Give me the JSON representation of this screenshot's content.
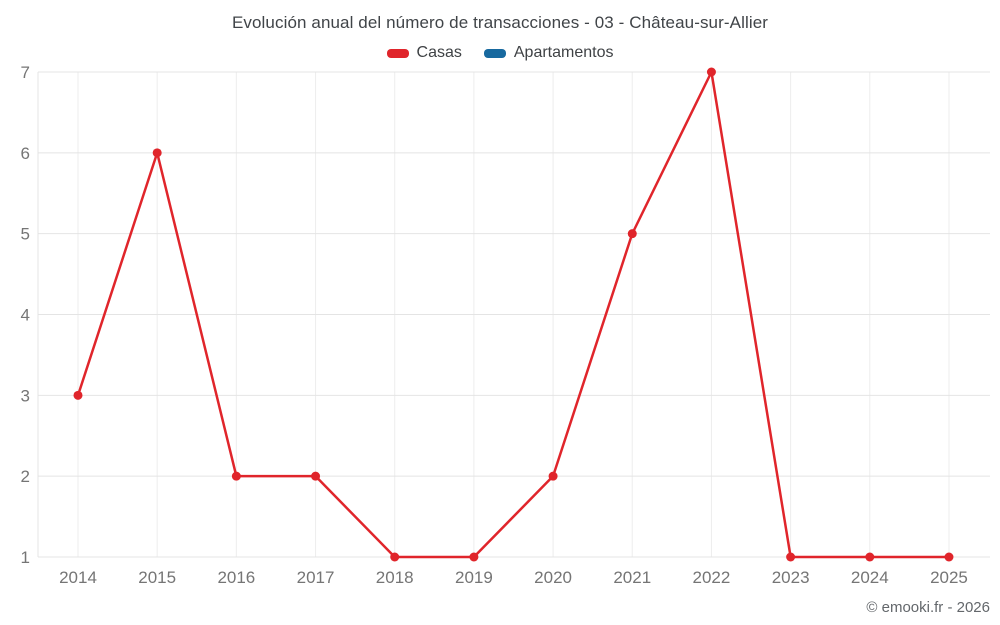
{
  "chart_data": {
    "type": "line",
    "title": "Evolución anual del número de transacciones - 03 - Château-sur-Allier",
    "categories": [
      "2014",
      "2015",
      "2016",
      "2017",
      "2018",
      "2019",
      "2020",
      "2021",
      "2022",
      "2023",
      "2024",
      "2025"
    ],
    "series": [
      {
        "name": "Casas",
        "color": "#e0252b",
        "values": [
          3,
          6,
          2,
          2,
          1,
          1,
          2,
          5,
          7,
          1,
          1,
          1
        ]
      },
      {
        "name": "Apartamentos",
        "color": "#17699f",
        "values": []
      }
    ],
    "xlabel": "",
    "ylabel": "",
    "ylim": [
      1,
      7
    ],
    "yticks": [
      1,
      2,
      3,
      4,
      5,
      6,
      7
    ],
    "grid": true,
    "legend_position": "top",
    "colors": {
      "gridline": "#e4e4e4",
      "gridline_vertical": "#ededed",
      "tick_label": "#757575"
    }
  },
  "footer": {
    "credit": "© emooki.fr - 2026"
  }
}
